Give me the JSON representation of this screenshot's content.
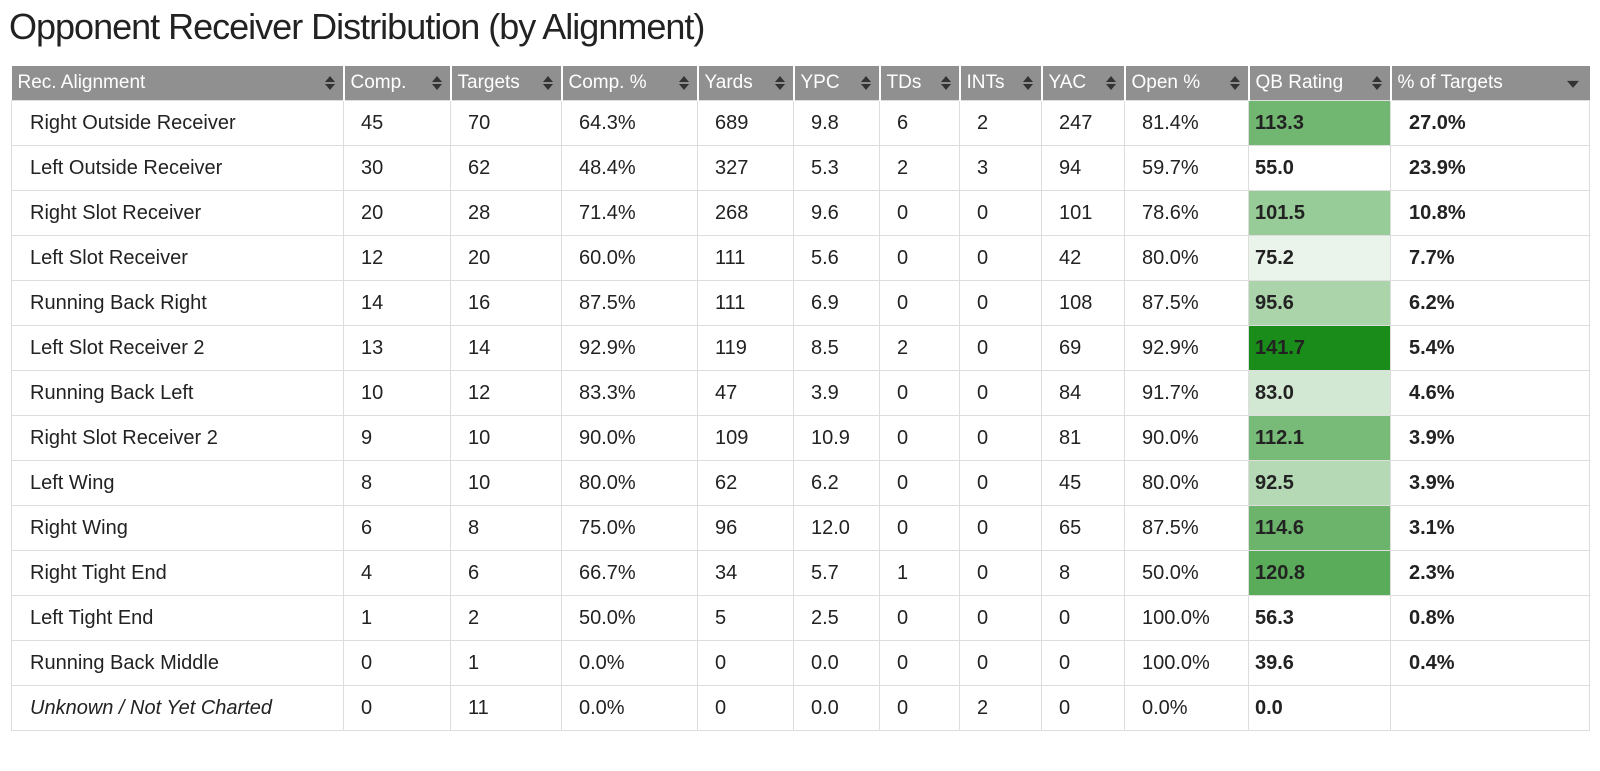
{
  "title": "Opponent Receiver Distribution (by Alignment)",
  "columns": [
    {
      "label": "Rec. Alignment",
      "sort": "both"
    },
    {
      "label": "Comp.",
      "sort": "both"
    },
    {
      "label": "Targets",
      "sort": "both"
    },
    {
      "label": "Comp. %",
      "sort": "both"
    },
    {
      "label": "Yards",
      "sort": "both"
    },
    {
      "label": "YPC",
      "sort": "both"
    },
    {
      "label": "TDs",
      "sort": "both"
    },
    {
      "label": "INTs",
      "sort": "both"
    },
    {
      "label": "YAC",
      "sort": "both"
    },
    {
      "label": "Open %",
      "sort": "both"
    },
    {
      "label": "QB Rating",
      "sort": "both"
    },
    {
      "label": "% of Targets",
      "sort": "desc"
    }
  ],
  "rows": [
    {
      "cells": [
        "Right Outside Receiver",
        "45",
        "70",
        "64.3%",
        "689",
        "9.8",
        "6",
        "2",
        "247",
        "81.4%",
        "113.3",
        "27.0%"
      ],
      "qb_bg": "#71b771",
      "italic": false
    },
    {
      "cells": [
        "Left Outside Receiver",
        "30",
        "62",
        "48.4%",
        "327",
        "5.3",
        "2",
        "3",
        "94",
        "59.7%",
        "55.0",
        "23.9%"
      ],
      "qb_bg": "",
      "italic": false
    },
    {
      "cells": [
        "Right Slot Receiver",
        "20",
        "28",
        "71.4%",
        "268",
        "9.6",
        "0",
        "0",
        "101",
        "78.6%",
        "101.5",
        "10.8%"
      ],
      "qb_bg": "#97cb97",
      "italic": false
    },
    {
      "cells": [
        "Left Slot Receiver",
        "12",
        "20",
        "60.0%",
        "111",
        "5.6",
        "0",
        "0",
        "42",
        "80.0%",
        "75.2",
        "7.7%"
      ],
      "qb_bg": "#ebf4eb",
      "italic": false
    },
    {
      "cells": [
        "Running Back Right",
        "14",
        "16",
        "87.5%",
        "111",
        "6.9",
        "0",
        "0",
        "108",
        "87.5%",
        "95.6",
        "6.2%"
      ],
      "qb_bg": "#abd4ab",
      "italic": false
    },
    {
      "cells": [
        "Left Slot Receiver 2",
        "13",
        "14",
        "92.9%",
        "119",
        "8.5",
        "2",
        "0",
        "69",
        "92.9%",
        "141.7",
        "5.4%"
      ],
      "qb_bg": "#1a8c1a",
      "italic": false
    },
    {
      "cells": [
        "Running Back Left",
        "10",
        "12",
        "83.3%",
        "47",
        "3.9",
        "0",
        "0",
        "84",
        "91.7%",
        "83.0",
        "4.6%"
      ],
      "qb_bg": "#d2e8d2",
      "italic": false
    },
    {
      "cells": [
        "Right Slot Receiver 2",
        "9",
        "10",
        "90.0%",
        "109",
        "10.9",
        "0",
        "0",
        "81",
        "90.0%",
        "112.1",
        "3.9%"
      ],
      "qb_bg": "#78ba78",
      "italic": false
    },
    {
      "cells": [
        "Left Wing",
        "8",
        "10",
        "80.0%",
        "62",
        "6.2",
        "0",
        "0",
        "45",
        "80.0%",
        "92.5",
        "3.9%"
      ],
      "qb_bg": "#b4d9b4",
      "italic": false
    },
    {
      "cells": [
        "Right Wing",
        "6",
        "8",
        "75.0%",
        "96",
        "12.0",
        "0",
        "0",
        "65",
        "87.5%",
        "114.6",
        "3.1%"
      ],
      "qb_bg": "#6cb46c",
      "italic": false
    },
    {
      "cells": [
        "Right Tight End",
        "4",
        "6",
        "66.7%",
        "34",
        "5.7",
        "1",
        "0",
        "8",
        "50.0%",
        "120.8",
        "2.3%"
      ],
      "qb_bg": "#5aab5a",
      "italic": false
    },
    {
      "cells": [
        "Left Tight End",
        "1",
        "2",
        "50.0%",
        "5",
        "2.5",
        "0",
        "0",
        "0",
        "100.0%",
        "56.3",
        "0.8%"
      ],
      "qb_bg": "",
      "italic": false
    },
    {
      "cells": [
        "Running Back Middle",
        "0",
        "1",
        "0.0%",
        "0",
        "0.0",
        "0",
        "0",
        "0",
        "100.0%",
        "39.6",
        "0.4%"
      ],
      "qb_bg": "",
      "italic": false
    },
    {
      "cells": [
        "Unknown / Not Yet Charted",
        "0",
        "11",
        "0.0%",
        "0",
        "0.0",
        "0",
        "2",
        "0",
        "0.0%",
        "0.0",
        ""
      ],
      "qb_bg": "",
      "italic": true
    }
  ]
}
